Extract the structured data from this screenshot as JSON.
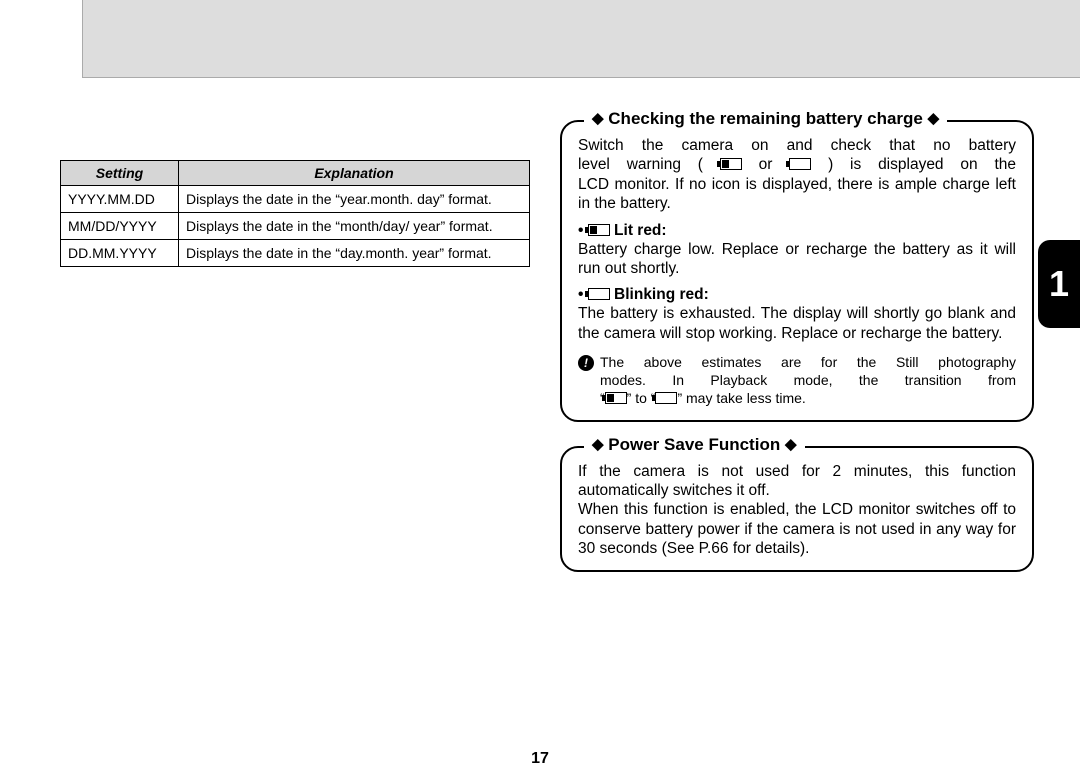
{
  "page_number": "17",
  "side_tab": "1",
  "table": {
    "headers": {
      "setting": "Setting",
      "explanation": "Explanation"
    },
    "rows": [
      {
        "setting": "YYYY.MM.DD",
        "explanation": "Displays the date in the “year.month. day” format."
      },
      {
        "setting": "MM/DD/YYYY",
        "explanation": "Displays the date in the “month/day/ year” format."
      },
      {
        "setting": "DD.MM.YYYY",
        "explanation": "Displays the date in the “day.month. year” format."
      }
    ]
  },
  "box1": {
    "title": "Checking the remaining battery charge",
    "intro1": "Switch the camera on and check that no battery",
    "intro2a": "level warning (",
    "intro2b": " or ",
    "intro2c": ") is displayed on the",
    "intro3": "LCD monitor. If no icon is displayed, there is ample charge left in the battery.",
    "lit_label": " Lit red:",
    "lit_body": "Battery charge low. Replace or recharge the battery as it will run out shortly.",
    "blink_label": " Blinking red:",
    "blink_body": "The battery is exhausted. The display will shortly go blank and the camera will stop working. Replace or recharge the battery.",
    "note1": "The above estimates are for the Still photography",
    "note2": "modes. In Playback mode, the transition from",
    "note3a": "“",
    "note3b": "” to “",
    "note3c": "” may take less time."
  },
  "box2": {
    "title": "Power Save Function",
    "p1": "If the camera is not used for 2 minutes, this function automatically switches it off.",
    "p2": "When this function is enabled, the LCD monitor switches off to conserve battery power if the camera is not used in any way for 30 seconds (See P.66 for details)."
  }
}
